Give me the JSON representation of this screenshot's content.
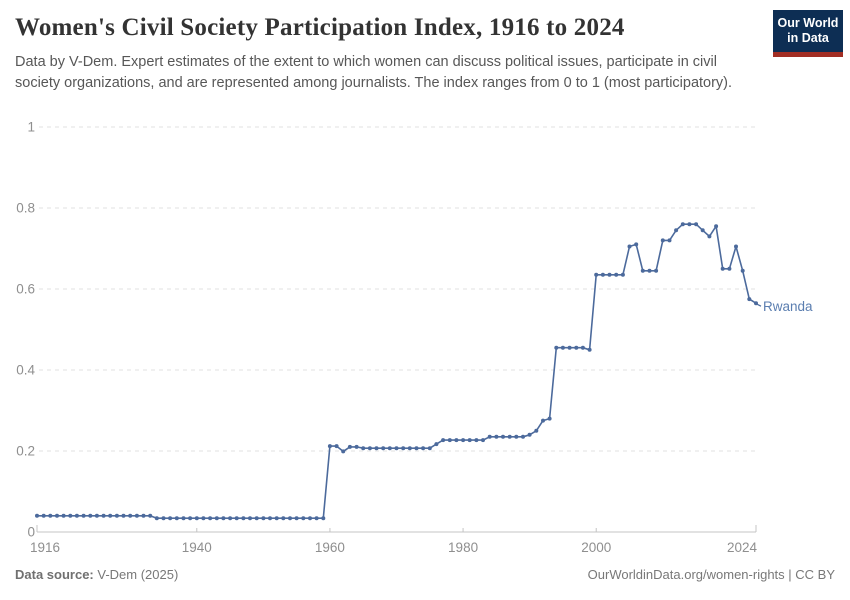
{
  "header": {
    "logo": {
      "line1": "Our World",
      "line2": "in Data",
      "bg_color": "#0d2e54",
      "accent_color": "#a22e24"
    }
  },
  "chart_data": {
    "type": "line",
    "title": "Women's Civil Society Participation Index, 1916 to 2024",
    "subtitle": "Data by V-Dem. Expert estimates of the extent to which women can discuss political issues, participate in civil society organizations, and are represented among journalists. The index ranges from 0 to 1 (most participatory).",
    "xlabel": "",
    "ylabel": "",
    "x_range": [
      1916,
      2024
    ],
    "ylim": [
      0,
      1
    ],
    "x_ticks": [
      1916,
      1940,
      1960,
      1980,
      2000,
      2024
    ],
    "y_ticks": [
      0,
      0.2,
      0.4,
      0.6,
      0.8,
      1
    ],
    "y_tick_labels": [
      "0",
      "0.2",
      "0.4",
      "0.6",
      "0.8",
      "1"
    ],
    "grid": "horizontal-dashed",
    "legend": "label-at-line-end",
    "line_color": "#4C6A9C",
    "label_color": "#5b7eb0",
    "series": [
      {
        "name": "Rwanda",
        "values": [
          0.04,
          0.04,
          0.04,
          0.04,
          0.04,
          0.04,
          0.04,
          0.04,
          0.04,
          0.04,
          0.04,
          0.04,
          0.04,
          0.04,
          0.04,
          0.04,
          0.04,
          0.04,
          0.034,
          0.034,
          0.034,
          0.034,
          0.034,
          0.034,
          0.034,
          0.034,
          0.034,
          0.034,
          0.034,
          0.034,
          0.034,
          0.034,
          0.034,
          0.034,
          0.034,
          0.034,
          0.034,
          0.034,
          0.034,
          0.034,
          0.034,
          0.034,
          0.034,
          0.034,
          0.212,
          0.212,
          0.199,
          0.21,
          0.21,
          0.207,
          0.207,
          0.207,
          0.207,
          0.207,
          0.207,
          0.207,
          0.207,
          0.207,
          0.207,
          0.207,
          0.217,
          0.227,
          0.227,
          0.227,
          0.227,
          0.227,
          0.227,
          0.227,
          0.235,
          0.235,
          0.235,
          0.235,
          0.235,
          0.235,
          0.24,
          0.25,
          0.275,
          0.28,
          0.455,
          0.455,
          0.455,
          0.455,
          0.455,
          0.45,
          0.635,
          0.635,
          0.635,
          0.635,
          0.635,
          0.705,
          0.71,
          0.645,
          0.645,
          0.645,
          0.72,
          0.72,
          0.745,
          0.76,
          0.76,
          0.76,
          0.745,
          0.73,
          0.755,
          0.65,
          0.65,
          0.705,
          0.645,
          0.575,
          0.565
        ]
      }
    ]
  },
  "footer": {
    "source_label": "Data source:",
    "source_value": " V-Dem (2025)",
    "credit": "OurWorldinData.org/women-rights | CC BY"
  }
}
